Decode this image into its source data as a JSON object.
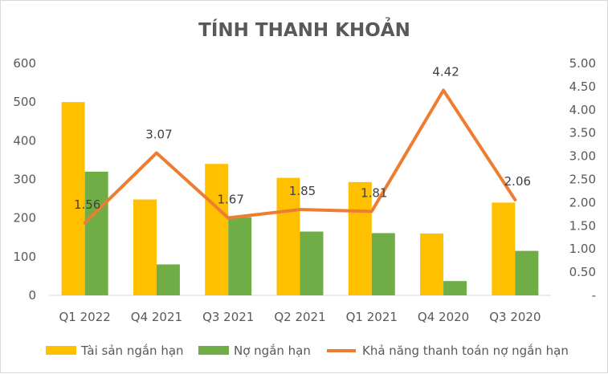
{
  "chart_data": {
    "type": "bar",
    "title": "TÍNH THANH KHOẢN",
    "categories": [
      "Q1 2022",
      "Q4 2021",
      "Q3 2021",
      "Q2 2021",
      "Q1 2021",
      "Q4 2020",
      "Q3 2020"
    ],
    "series": [
      {
        "name": "Tài sản ngắn hạn",
        "kind": "bar",
        "axis": "left",
        "color": "#FFC000",
        "values": [
          500,
          248,
          340,
          304,
          293,
          160,
          240
        ]
      },
      {
        "name": "Nợ ngắn hạn",
        "kind": "bar",
        "axis": "left",
        "color": "#70AD47",
        "values": [
          320,
          80,
          202,
          165,
          161,
          37,
          115
        ]
      },
      {
        "name": "Khả năng thanh toán nợ ngắn hạn",
        "kind": "line",
        "axis": "right",
        "color": "#ED7D31",
        "values": [
          1.56,
          3.07,
          1.67,
          1.85,
          1.81,
          4.42,
          2.06
        ],
        "labels": [
          "1.56",
          "3.07",
          "1.67",
          "1.85",
          "1.81",
          "4.42",
          "2.06"
        ]
      }
    ],
    "y_left": {
      "min": 0,
      "max": 600,
      "ticks": [
        0,
        100,
        200,
        300,
        400,
        500,
        600
      ],
      "tick_labels": [
        "0",
        "100",
        "200",
        "300",
        "400",
        "500",
        "600"
      ]
    },
    "y_right": {
      "min": 0,
      "max": 5,
      "ticks": [
        0,
        0.5,
        1,
        1.5,
        2,
        2.5,
        3,
        3.5,
        4,
        4.5,
        5
      ],
      "tick_labels": [
        "-",
        "0.50",
        "1.00",
        "1.50",
        "2.00",
        "2.50",
        "3.00",
        "3.50",
        "4.00",
        "4.50",
        "5.00"
      ]
    },
    "grid": false,
    "legend": "bottom"
  }
}
